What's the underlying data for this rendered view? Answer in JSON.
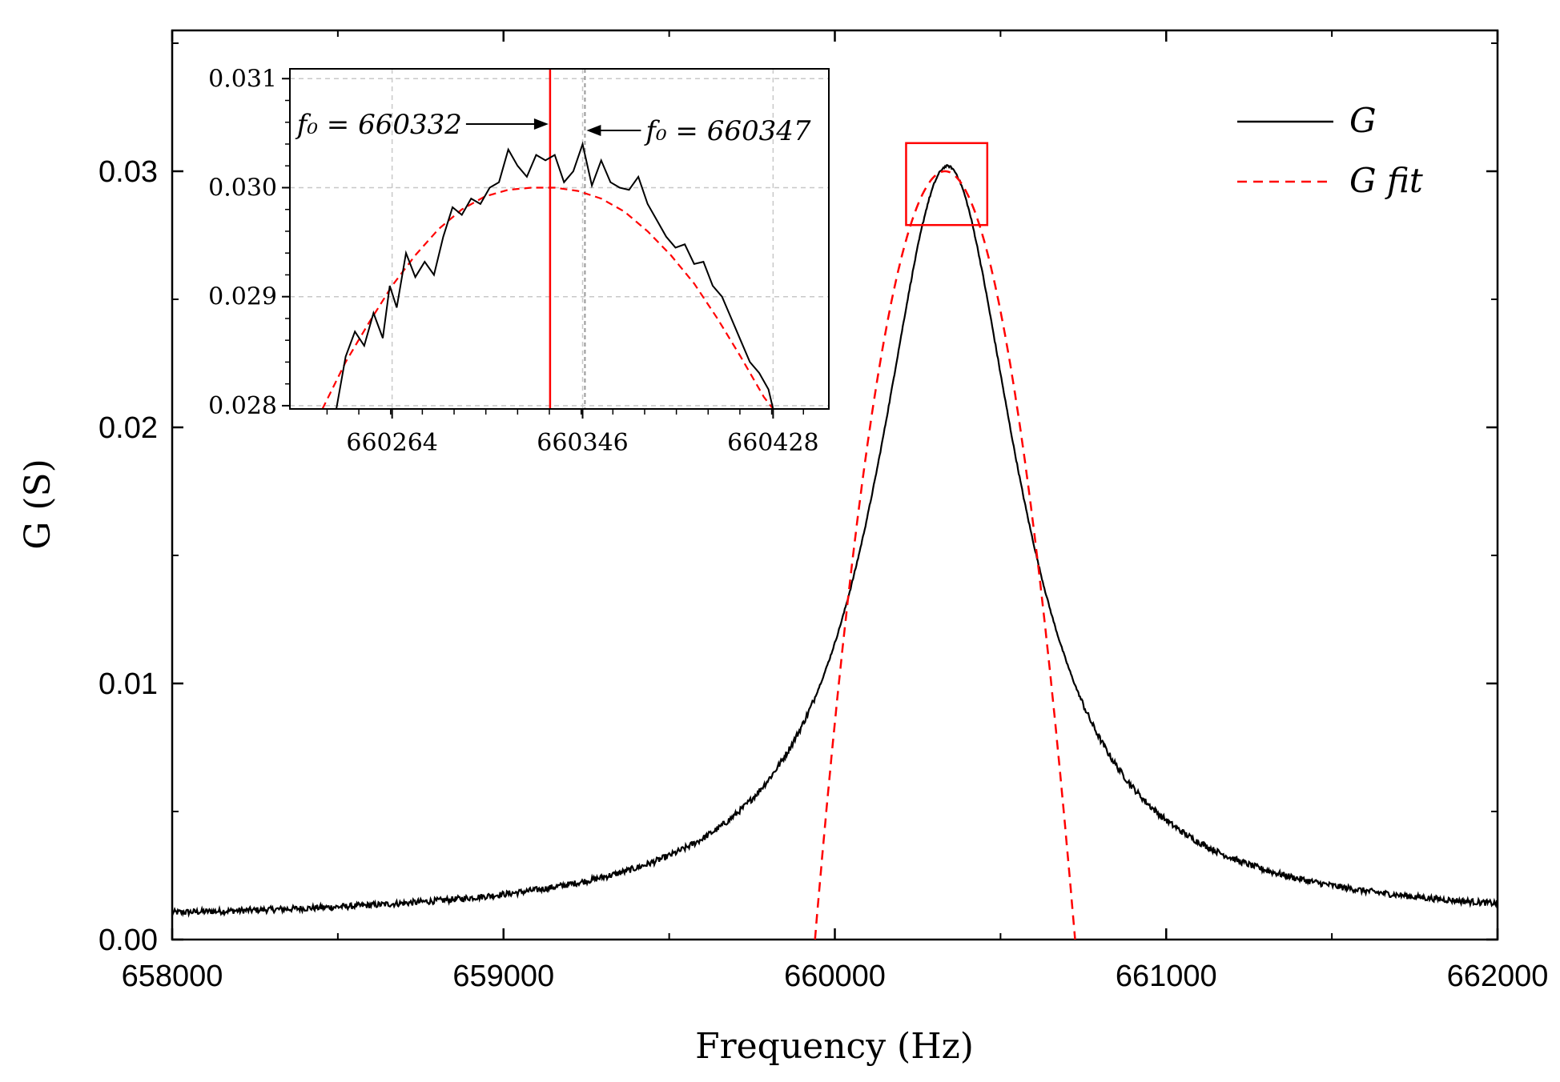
{
  "chart_data": {
    "type": "line",
    "xlabel": "Frequency (Hz)",
    "ylabel": "G (S)",
    "xlim": [
      658000,
      662000
    ],
    "ylim": [
      0,
      0.0355
    ],
    "x_ticks": [
      658000,
      659000,
      660000,
      661000,
      662000
    ],
    "x_tick_labels": [
      "658000",
      "659000",
      "660000",
      "661000",
      "662000"
    ],
    "y_ticks": [
      0.0,
      0.01,
      0.02,
      0.03
    ],
    "y_tick_labels": [
      "0.00",
      "0.01",
      "0.02",
      "0.03"
    ],
    "legend": {
      "position": "top-right",
      "entries": [
        {
          "label": "G",
          "style": "solid",
          "color": "#000000"
        },
        {
          "label": "G fit",
          "style": "dashed",
          "color": "#ff0000"
        }
      ]
    },
    "series": [
      {
        "name": "G",
        "color": "#000000",
        "style": "solid",
        "model": "lorentzian_with_noise",
        "center": 660340,
        "peak": 0.0302,
        "half_width": 260,
        "baseline": 0.0007,
        "noise": 0.00012,
        "x_range": [
          658000,
          662000
        ]
      },
      {
        "name": "G fit",
        "color": "#ff0000",
        "style": "dashed",
        "model": "quadratic",
        "center": 660332,
        "peak": 0.03,
        "zero_crossings": [
          659940,
          660725
        ]
      }
    ],
    "highlight_box": {
      "x_range": [
        660215,
        660460
      ],
      "y_range": [
        0.0279,
        0.0311
      ],
      "color": "#ff0000"
    },
    "inset": {
      "xlim": [
        660220,
        660452
      ],
      "ylim": [
        0.02797,
        0.03109
      ],
      "x_ticks": [
        660264,
        660346,
        660428
      ],
      "x_tick_labels": [
        "660264",
        "660346",
        "660428"
      ],
      "y_ticks": [
        0.028,
        0.029,
        0.03,
        0.031
      ],
      "y_tick_labels": [
        "0.028",
        "0.029",
        "0.030",
        "0.031"
      ],
      "grid": true,
      "vertical_lines": [
        {
          "x": 660332,
          "color": "#ff0000"
        },
        {
          "x": 660347,
          "color": "#999999"
        }
      ],
      "annotations": [
        {
          "text": "f₀ = 660332",
          "x": 660332,
          "side": "left"
        },
        {
          "text": "f₀ = 660347",
          "x": 660347,
          "side": "right"
        }
      ],
      "G_points": [
        [
          660240,
          0.02797
        ],
        [
          660244,
          0.02845
        ],
        [
          660248,
          0.02868
        ],
        [
          660252,
          0.02855
        ],
        [
          660256,
          0.02885
        ],
        [
          660260,
          0.02862
        ],
        [
          660263,
          0.0291
        ],
        [
          660266,
          0.0289
        ],
        [
          660270,
          0.0294
        ],
        [
          660274,
          0.02918
        ],
        [
          660278,
          0.02932
        ],
        [
          660282,
          0.0292
        ],
        [
          660286,
          0.02955
        ],
        [
          660290,
          0.02982
        ],
        [
          660294,
          0.02975
        ],
        [
          660298,
          0.0299
        ],
        [
          660302,
          0.02985
        ],
        [
          660306,
          0.03
        ],
        [
          660310,
          0.03005
        ],
        [
          660314,
          0.03035
        ],
        [
          660318,
          0.0302
        ],
        [
          660322,
          0.0301
        ],
        [
          660326,
          0.0303
        ],
        [
          660330,
          0.03025
        ],
        [
          660334,
          0.0303
        ],
        [
          660338,
          0.03005
        ],
        [
          660342,
          0.03015
        ],
        [
          660346,
          0.0304
        ],
        [
          660350,
          0.03002
        ],
        [
          660354,
          0.03025
        ],
        [
          660358,
          0.03005
        ],
        [
          660362,
          0.03
        ],
        [
          660366,
          0.02998
        ],
        [
          660370,
          0.0301
        ],
        [
          660374,
          0.02985
        ],
        [
          660378,
          0.0297
        ],
        [
          660382,
          0.02955
        ],
        [
          660386,
          0.02945
        ],
        [
          660390,
          0.02948
        ],
        [
          660394,
          0.0293
        ],
        [
          660398,
          0.02932
        ],
        [
          660402,
          0.0291
        ],
        [
          660406,
          0.029
        ],
        [
          660410,
          0.0288
        ],
        [
          660414,
          0.0286
        ],
        [
          660418,
          0.0284
        ],
        [
          660422,
          0.0283
        ],
        [
          660426,
          0.02815
        ],
        [
          660428,
          0.02797
        ]
      ],
      "fit_points": [
        [
          660234,
          0.02797
        ],
        [
          660244,
          0.0284
        ],
        [
          660254,
          0.02876
        ],
        [
          660264,
          0.0291
        ],
        [
          660274,
          0.02938
        ],
        [
          660284,
          0.02962
        ],
        [
          660294,
          0.0298
        ],
        [
          660304,
          0.02992
        ],
        [
          660314,
          0.02998
        ],
        [
          660324,
          0.03
        ],
        [
          660334,
          0.03
        ],
        [
          660344,
          0.02997
        ],
        [
          660354,
          0.0299
        ],
        [
          660364,
          0.02978
        ],
        [
          660374,
          0.0296
        ],
        [
          660384,
          0.02938
        ],
        [
          660394,
          0.02912
        ],
        [
          660404,
          0.0288
        ],
        [
          660414,
          0.02845
        ],
        [
          660424,
          0.02808
        ],
        [
          660428,
          0.02797
        ]
      ]
    }
  }
}
